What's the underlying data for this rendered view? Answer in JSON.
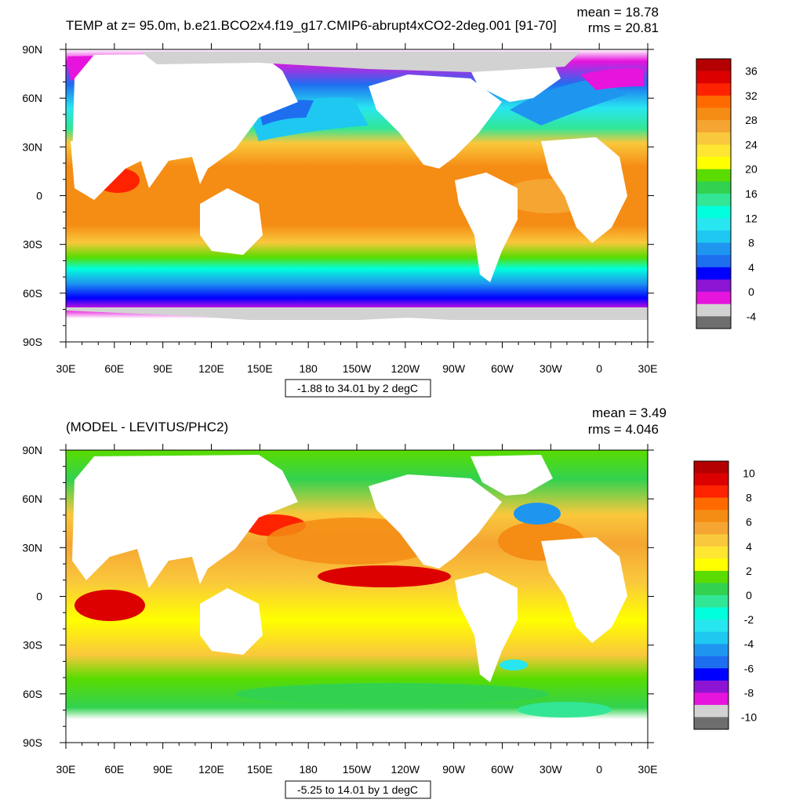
{
  "panels": [
    {
      "title": "TEMP at z=  95.0m, b.e21.BCO2x4.f19_g17.CMIP6-abrupt4xCO2-2deg.001 [91-70]",
      "mean_label": "mean = 18.78",
      "rms_label": "rms = 20.81",
      "info_label": "-1.88 to 34.01 by 2 degC",
      "colorbar": {
        "labels": [
          "36",
          "32",
          "28",
          "24",
          "20",
          "16",
          "12",
          "8",
          "4",
          "0",
          "-4"
        ],
        "colors_top_to_bottom": [
          "#b40000",
          "#dc0000",
          "#ff2200",
          "#ff6a00",
          "#f58c14",
          "#f5a532",
          "#fac83c",
          "#ffe632",
          "#ffff00",
          "#5adc00",
          "#32d250",
          "#32e696",
          "#00ffdc",
          "#28e6f0",
          "#1ec8f0",
          "#1e96f0",
          "#1e6ef0",
          "#0000ff",
          "#8c14d2",
          "#e614dc",
          "#d2d2d2",
          "#6e6e6e"
        ]
      }
    },
    {
      "title": "(MODEL - LEVITUS/PHC2)",
      "mean_label": "mean = 3.49",
      "rms_label": "rms = 4.046",
      "info_label": "-5.25 to 14.01 by 1 degC",
      "colorbar": {
        "labels": [
          "10",
          "8",
          "6",
          "4",
          "2",
          "0",
          "-2",
          "-4",
          "-6",
          "-8",
          "-10"
        ],
        "colors_top_to_bottom": [
          "#b40000",
          "#dc0000",
          "#ff2200",
          "#ff6a00",
          "#f58c14",
          "#f5a532",
          "#fac83c",
          "#ffe632",
          "#ffff00",
          "#5adc00",
          "#32d250",
          "#32e696",
          "#00ffdc",
          "#28e6f0",
          "#1ec8f0",
          "#1e96f0",
          "#1e6ef0",
          "#0000ff",
          "#8c14d2",
          "#e614dc",
          "#d2d2d2",
          "#6e6e6e"
        ]
      }
    }
  ],
  "lat_labels": [
    "90N",
    "60N",
    "30N",
    "0",
    "30S",
    "60S",
    "90S"
  ],
  "lon_labels": [
    "30E",
    "60E",
    "90E",
    "120E",
    "150E",
    "180",
    "150W",
    "120W",
    "90W",
    "60W",
    "30W",
    "0",
    "30E"
  ]
}
